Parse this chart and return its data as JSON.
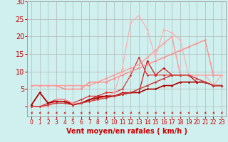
{
  "background_color": "#cff0ee",
  "grid_color": "#aaaaaa",
  "xlabel": "Vent moyen/en rafales ( km/h )",
  "xlabel_color": "#cc0000",
  "xlabel_fontsize": 7,
  "xtick_color": "#cc0000",
  "ytick_color": "#cc0000",
  "ytick_fontsize": 7,
  "xtick_fontsize": 5.5,
  "ylim": [
    0,
    30
  ],
  "xlim": [
    -0.5,
    23.5
  ],
  "yticks": [
    0,
    5,
    10,
    15,
    20,
    25,
    30
  ],
  "xticks": [
    0,
    1,
    2,
    3,
    4,
    5,
    6,
    7,
    8,
    9,
    10,
    11,
    12,
    13,
    14,
    15,
    16,
    17,
    18,
    19,
    20,
    21,
    22,
    23
  ],
  "lines": [
    {
      "x": [
        0,
        1,
        2,
        3,
        4,
        5,
        6,
        7,
        8,
        9,
        10,
        11,
        12,
        13,
        14,
        15,
        16,
        17,
        18,
        19,
        20,
        21,
        22,
        23
      ],
      "y": [
        0.5,
        4,
        1,
        2,
        2,
        0.5,
        1,
        2,
        3,
        3,
        3,
        4,
        4,
        4,
        13,
        9,
        11,
        9,
        9,
        9,
        7,
        7,
        6,
        6
      ],
      "color": "#cc0000",
      "lw": 0.8,
      "marker": "D",
      "ms": 1.5
    },
    {
      "x": [
        0,
        1,
        2,
        3,
        4,
        5,
        6,
        7,
        8,
        9,
        10,
        11,
        12,
        13,
        14,
        15,
        16,
        17,
        18,
        19,
        20,
        21,
        22,
        23
      ],
      "y": [
        0,
        0,
        1,
        2,
        2,
        1,
        2,
        3,
        3,
        4,
        4,
        5,
        9,
        14,
        9,
        9,
        9,
        9,
        9,
        9,
        7,
        7,
        6,
        6
      ],
      "color": "#dd2222",
      "lw": 0.8,
      "marker": "D",
      "ms": 1.5
    },
    {
      "x": [
        0,
        1,
        2,
        3,
        4,
        5,
        6,
        7,
        8,
        9,
        10,
        11,
        12,
        13,
        14,
        15,
        16,
        17,
        18,
        19,
        20,
        21,
        22,
        23
      ],
      "y": [
        6,
        6,
        6,
        6,
        5,
        5,
        5,
        7,
        7,
        7,
        8,
        9,
        10,
        11,
        12,
        13,
        14,
        15,
        16,
        17,
        18,
        19,
        9,
        9
      ],
      "color": "#ff8888",
      "lw": 1.0,
      "marker": "D",
      "ms": 1.5
    },
    {
      "x": [
        0,
        1,
        2,
        3,
        4,
        5,
        6,
        7,
        8,
        9,
        10,
        11,
        12,
        13,
        14,
        15,
        16,
        17,
        18,
        19,
        20,
        21,
        22,
        23
      ],
      "y": [
        6,
        6,
        6,
        6,
        6,
        6,
        6,
        6,
        7,
        8,
        9,
        10,
        11,
        12,
        14,
        16,
        18,
        20,
        9,
        9,
        9,
        9,
        9,
        9
      ],
      "color": "#ff9999",
      "lw": 1.0,
      "marker": "D",
      "ms": 1.5
    },
    {
      "x": [
        0,
        1,
        2,
        3,
        4,
        5,
        6,
        7,
        8,
        9,
        10,
        11,
        12,
        13,
        14,
        15,
        16,
        17,
        18,
        19,
        20,
        21,
        22,
        23
      ],
      "y": [
        0,
        0,
        0,
        2,
        2,
        1,
        1,
        2,
        2,
        3,
        4,
        11,
        24,
        26,
        22,
        14,
        22,
        21,
        19,
        9,
        9,
        9,
        6,
        9
      ],
      "color": "#ffaaaa",
      "lw": 0.8,
      "marker": "D",
      "ms": 1.5
    },
    {
      "x": [
        0,
        1,
        2,
        3,
        4,
        5,
        6,
        7,
        8,
        9,
        10,
        11,
        12,
        13,
        14,
        15,
        16,
        17,
        18,
        19,
        20,
        21,
        22,
        23
      ],
      "y": [
        0.5,
        4,
        1,
        1.5,
        1.5,
        0.5,
        1,
        2,
        2.5,
        3,
        3,
        3.5,
        4,
        4,
        5,
        5,
        6,
        6,
        7,
        7,
        7,
        7,
        6,
        6
      ],
      "color": "#aa0000",
      "lw": 1.2,
      "marker": "D",
      "ms": 1.5
    },
    {
      "x": [
        0,
        1,
        2,
        3,
        4,
        5,
        6,
        7,
        8,
        9,
        10,
        11,
        12,
        13,
        14,
        15,
        16,
        17,
        18,
        19,
        20,
        21,
        22,
        23
      ],
      "y": [
        0,
        0,
        0.5,
        1,
        1,
        0.5,
        1,
        1.5,
        2,
        2.5,
        3,
        3.5,
        4,
        5,
        6,
        7,
        8,
        9,
        9,
        9,
        8,
        7,
        6,
        6
      ],
      "color": "#cc3333",
      "lw": 1.0,
      "marker": "D",
      "ms": 1.5
    }
  ],
  "arrow_color": "#cc0000"
}
